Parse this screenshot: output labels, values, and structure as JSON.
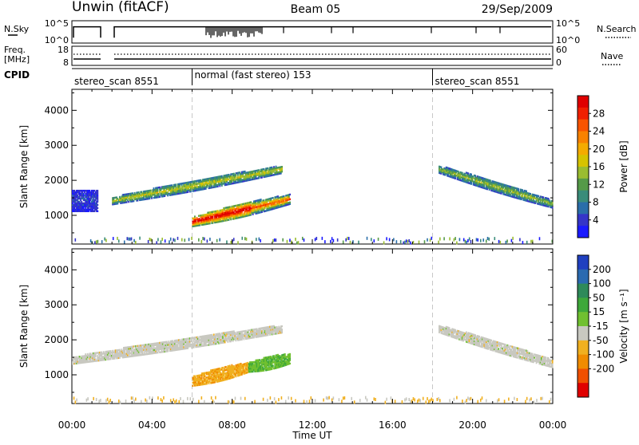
{
  "header": {
    "station": "Unwin (fitACF)",
    "beam": "Beam 05",
    "date": "29/Sep/2009"
  },
  "top_panels": {
    "nsky_label": "N.Sky",
    "nsky_ticks": [
      "10^5",
      "10^0"
    ],
    "nsearch_label": "N.Search",
    "nsearch_ticks": [
      "10^5",
      "10^0"
    ],
    "freq_label": "Freq.",
    "freq_unit": "[MHz]",
    "freq_ticks": [
      "18",
      "8"
    ],
    "nave_label": "Nave",
    "nave_ticks": [
      "60",
      "0"
    ],
    "cpid_label": "CPID"
  },
  "cpid_segments": [
    {
      "label": "stereo_scan 8551",
      "start_hr": 0,
      "end_hr": 6
    },
    {
      "label": "normal (fast stereo) 153",
      "start_hr": 6,
      "end_hr": 18
    },
    {
      "label": "stereo_scan 8551",
      "start_hr": 18,
      "end_hr": 24
    }
  ],
  "chart_data": [
    {
      "type": "heatmap",
      "name": "power",
      "ylabel": "Slant Range [km]",
      "xlabel": "Time UT",
      "xticks": [
        "00:00",
        "04:00",
        "08:00",
        "12:00",
        "16:00",
        "20:00",
        "00:00"
      ],
      "xlim_hours": [
        0,
        24
      ],
      "yticks": [
        1000,
        2000,
        3000,
        4000
      ],
      "ylim_km": [
        180,
        4600
      ],
      "colorbar": {
        "label": "Power [dB]",
        "ticks": [
          "4",
          "8",
          "12",
          "16",
          "20",
          "24",
          "28"
        ],
        "colors": [
          "#1a1aff",
          "#3535c8",
          "#2a6eaa",
          "#3a8c7a",
          "#559a48",
          "#9abc30",
          "#d6c300",
          "#f4ab00",
          "#f88200",
          "#f85400",
          "#f02000",
          "#e00000"
        ]
      },
      "features": [
        {
          "label": "echo band",
          "t_start_hr": 0.0,
          "t_end_hr": 1.3,
          "range_km": [
            1100,
            1700
          ],
          "level": 0.1
        },
        {
          "label": "echo band",
          "t_start_hr": 2.0,
          "t_end_hr": 10.5,
          "range_start_km": 1400,
          "range_end_km": 2300,
          "width_km": 300,
          "level": 0.45
        },
        {
          "label": "echo band",
          "t_start_hr": 6.0,
          "t_end_hr": 10.9,
          "range_start_km": 800,
          "range_end_km": 1450,
          "width_km": 380,
          "level": 0.85
        },
        {
          "label": "echo band",
          "t_start_hr": 18.3,
          "t_end_hr": 24.0,
          "range_start_km": 2300,
          "range_end_km": 1300,
          "width_km": 300,
          "level": 0.4
        }
      ],
      "dashed_lines_hr": [
        6,
        18
      ]
    },
    {
      "type": "heatmap",
      "name": "velocity",
      "ylabel": "Slant Range [km]",
      "xlabel": "Time UT",
      "xticks": [
        "00:00",
        "04:00",
        "08:00",
        "12:00",
        "16:00",
        "20:00",
        "00:00"
      ],
      "xlim_hours": [
        0,
        24
      ],
      "yticks": [
        1000,
        2000,
        3000,
        4000
      ],
      "ylim_km": [
        180,
        4600
      ],
      "colorbar": {
        "label": "Velocity [m s⁻¹]",
        "ticks": [
          "200",
          "100",
          "50",
          "15",
          "-15",
          "-50",
          "-100",
          "-200"
        ],
        "colors": [
          "#2040c0",
          "#2a6ab0",
          "#2e8a5a",
          "#3ea83a",
          "#70c030",
          "#c8c8c0",
          "#f0b020",
          "#f08c00",
          "#f05000",
          "#e00000"
        ]
      },
      "features": [
        {
          "label": "ground scatter",
          "t_start_hr": 0.0,
          "t_end_hr": 10.5,
          "range_start_km": 1400,
          "range_end_km": 2300,
          "width_km": 300,
          "velocity": 0
        },
        {
          "label": "negative velocity",
          "t_start_hr": 6.0,
          "t_end_hr": 8.8,
          "range_start_km": 800,
          "range_end_km": 1200,
          "width_km": 380,
          "velocity": -40
        },
        {
          "label": "positive velocity",
          "t_start_hr": 8.8,
          "t_end_hr": 10.9,
          "range_start_km": 1200,
          "range_end_km": 1450,
          "width_km": 380,
          "velocity": 40
        },
        {
          "label": "ground scatter",
          "t_start_hr": 18.3,
          "t_end_hr": 24.0,
          "range_start_km": 2300,
          "range_end_km": 1300,
          "width_km": 300,
          "velocity": 0
        }
      ],
      "dashed_lines_hr": [
        6,
        18
      ]
    }
  ]
}
